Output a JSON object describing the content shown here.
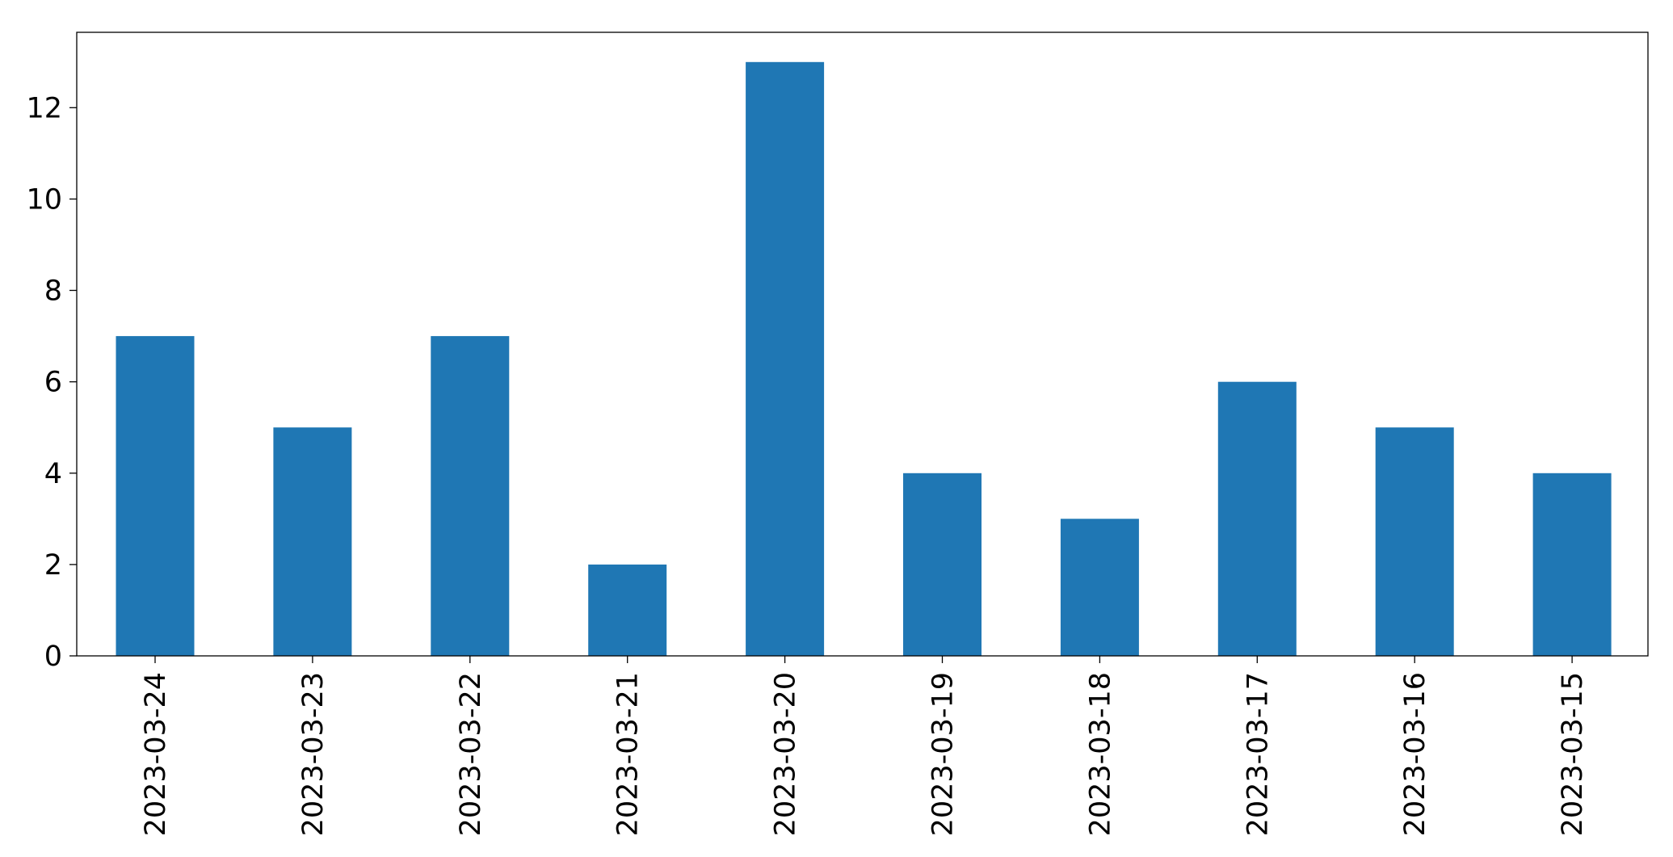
{
  "chart_data": {
    "type": "bar",
    "title": "",
    "xlabel": "",
    "ylabel": "",
    "categories": [
      "2023-03-24",
      "2023-03-23",
      "2023-03-22",
      "2023-03-21",
      "2023-03-20",
      "2023-03-19",
      "2023-03-18",
      "2023-03-17",
      "2023-03-16",
      "2023-03-15"
    ],
    "values": [
      7,
      5,
      7,
      2,
      13,
      4,
      3,
      6,
      5,
      4
    ],
    "yticks": [
      0,
      2,
      4,
      6,
      8,
      10,
      12
    ],
    "ylim": [
      0,
      13.65
    ],
    "grid": false,
    "legend": "none",
    "bar_color": "#1f77b4",
    "axis_color": "#000000"
  }
}
